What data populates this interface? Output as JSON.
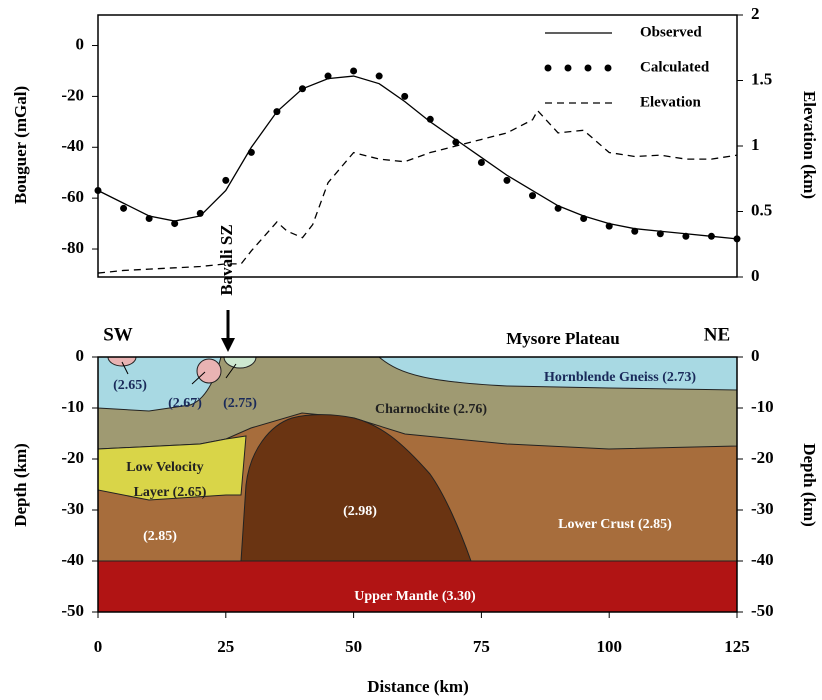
{
  "chart_data": [
    {
      "type": "line",
      "ylabel": "Bouguer (mGal)",
      "y2label": "Elevation (km)",
      "annotation": "Bavali SZ",
      "xlim": [
        0,
        125
      ],
      "ylim": [
        -91,
        12
      ],
      "yticks": [
        0,
        -20,
        -40,
        -60,
        -80
      ],
      "y2lim": [
        0,
        2
      ],
      "y2ticks": [
        0,
        0.5,
        1,
        1.5,
        2
      ],
      "series": [
        {
          "name": "Observed",
          "style": "solid",
          "color": "#000000",
          "x": [
            0,
            5,
            10,
            15,
            20,
            25,
            30,
            35,
            40,
            45,
            50,
            55,
            60,
            65,
            70,
            75,
            80,
            85,
            90,
            95,
            100,
            105,
            110,
            115,
            120,
            125
          ],
          "values": [
            -57,
            -62,
            -67,
            -69,
            -67,
            -57,
            -40,
            -26,
            -17,
            -13,
            -12,
            -15,
            -22,
            -30,
            -37,
            -44,
            -51,
            -57,
            -63,
            -67,
            -70,
            -72,
            -73,
            -74,
            -75,
            -76
          ]
        },
        {
          "name": "Calculated",
          "style": "dots",
          "color": "#000000",
          "x": [
            0,
            5,
            10,
            15,
            20,
            25,
            30,
            35,
            40,
            45,
            50,
            55,
            60,
            65,
            70,
            75,
            80,
            85,
            90,
            95,
            100,
            105,
            110,
            115,
            120,
            125
          ],
          "values": [
            -57,
            -64,
            -68,
            -70,
            -66,
            -53,
            -42,
            -26,
            -17,
            -12,
            -10,
            -12,
            -20,
            -29,
            -38,
            -46,
            -53,
            -59,
            -64,
            -68,
            -71,
            -73,
            -74,
            -75,
            -75,
            -76
          ]
        },
        {
          "name": "Elevation",
          "style": "dashed",
          "color": "#000000",
          "axis": "y2",
          "x": [
            0,
            5,
            10,
            15,
            20,
            25,
            28,
            30,
            35,
            37,
            40,
            42,
            45,
            50,
            55,
            60,
            65,
            70,
            75,
            80,
            85,
            86,
            90,
            95,
            100,
            105,
            110,
            115,
            120,
            125
          ],
          "values": [
            0.03,
            0.05,
            0.06,
            0.07,
            0.08,
            0.1,
            0.1,
            0.2,
            0.42,
            0.35,
            0.3,
            0.4,
            0.72,
            0.95,
            0.9,
            0.88,
            0.95,
            1.0,
            1.05,
            1.1,
            1.2,
            1.27,
            1.1,
            1.12,
            0.95,
            0.92,
            0.93,
            0.9,
            0.9,
            0.93
          ]
        }
      ]
    },
    {
      "type": "section",
      "title": "Mysore Plateau",
      "left_label": "SW",
      "right_label": "NE",
      "xlabel": "Distance (km)",
      "ylabel": "Depth (km)",
      "xlim": [
        0,
        125
      ],
      "xticks": [
        0,
        25,
        50,
        75,
        100,
        125
      ],
      "ylim": [
        -50,
        0
      ],
      "yticks": [
        0,
        -10,
        -20,
        -30,
        -40,
        -50
      ],
      "units": [
        "Hornblende Gneiss (2.73)",
        "Charnockite (2.76)",
        "Low Velocity",
        "Layer (2.65)",
        "(2.98)",
        "(2.85)",
        "Lower Crust (2.85)",
        "Upper Mantle (3.30)",
        "(2.65)",
        "(2.67)",
        "(2.75)"
      ]
    }
  ]
}
